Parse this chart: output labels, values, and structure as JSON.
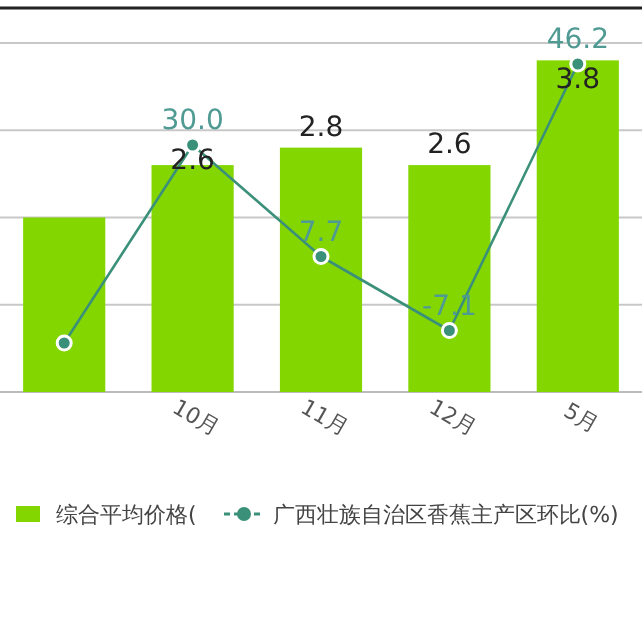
{
  "chart_data": {
    "type": "bar",
    "categories": [
      null,
      "10月",
      "11月",
      "12月",
      "5月"
    ],
    "series": [
      {
        "name": "综合平均价格(",
        "color": "#84d600",
        "values": [
          2.0,
          2.6,
          2.8,
          2.6,
          3.8
        ],
        "value_labels": [
          null,
          "2.6",
          "2.8",
          "2.6",
          "3.8"
        ]
      },
      {
        "name": "广西壮族自治区香蕉主产区环比(%)",
        "type": "line",
        "axis": "y2",
        "color": "#3a9079",
        "values": [
          -9.6,
          30.0,
          7.7,
          -7.1,
          46.2
        ],
        "value_labels": [
          null,
          "30.0",
          "7.7",
          "-7.1",
          "46.2"
        ]
      }
    ],
    "ylim": [
      0,
      4.4
    ],
    "yticks": [
      {
        "value": 1,
        "label": null
      },
      {
        "value": 2,
        "label": null
      },
      {
        "value": 3,
        "label": null
      },
      {
        "value": 4,
        "label": null
      }
    ],
    "y2lim": [
      -19.4,
      57.4
    ],
    "grid": "y",
    "legend": "bottom",
    "marker": "circle",
    "line_style": "solid",
    "tick_labels": "x"
  }
}
